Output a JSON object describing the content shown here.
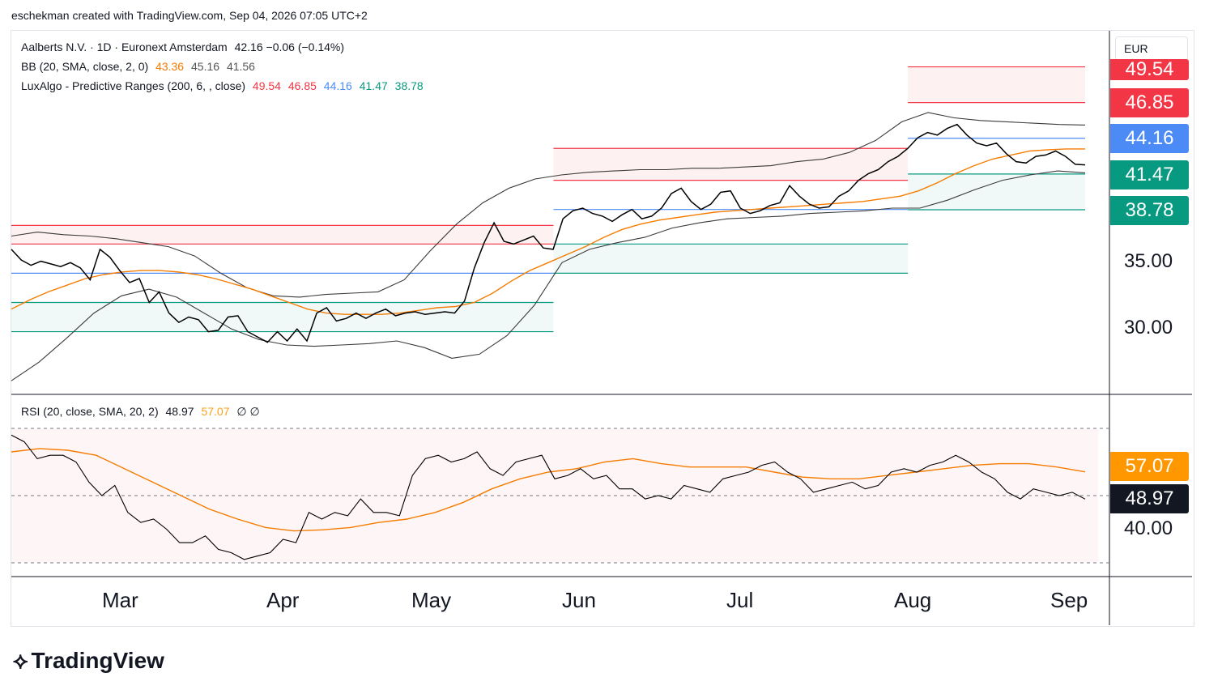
{
  "header": {
    "attribution": "eschekman created with TradingView.com, Sep 04, 2026 07:05 UTC+2"
  },
  "currency": "EUR",
  "legend": {
    "line1": "Aalberts N.V. · 1D · Euronext Amsterdam",
    "line1_values": "42.16  −0.06 (−0.14%)",
    "bb_label": "BB (20, SMA, close, 2, 0)",
    "bb_basis": "43.36",
    "bb_upper": "45.16",
    "bb_lower": "41.56",
    "lux_label": "LuxAlgo - Predictive Ranges (200, 6, , close)",
    "lux_r2": "49.54",
    "lux_r1": "46.85",
    "lux_avg": "44.16",
    "lux_s1": "41.47",
    "lux_s2": "38.78",
    "rsi_label": "RSI (20, close, SMA, 20, 2)",
    "rsi_value": "48.97",
    "rsi_ma": "57.07",
    "rsi_na": "∅  ∅"
  },
  "price_tags": {
    "r2": "49.54",
    "r1": "46.85",
    "avg": "44.16",
    "s1": "41.47",
    "s2": "38.78",
    "rsi_ma": "57.07",
    "rsi": "48.97"
  },
  "price_axis_labels": [
    "35.00",
    "30.00"
  ],
  "rsi_axis_label": "40.00",
  "time_axis": [
    "Mar",
    "Apr",
    "May",
    "Jun",
    "Jul",
    "Aug",
    "Sep"
  ],
  "colors": {
    "resistance": "#f23645",
    "average": "#4c8bf5",
    "support": "#089981",
    "bb_basis": "#f57c00",
    "price": "#000000",
    "bb_band": "#3a3a3a",
    "rsi_tag": "#131722"
  },
  "brand": "TradingView",
  "chart_data": [
    {
      "type": "line",
      "title": "Aalberts N.V. · 1D · Euronext Amsterdam",
      "x_range": [
        "2026-02-10",
        "2026-09-04"
      ],
      "ylim": [
        26,
        52
      ],
      "series": [
        {
          "name": "close",
          "values": [
            35.8,
            35.0,
            34.6,
            34.9,
            34.7,
            34.5,
            34.8,
            34.4,
            33.5,
            35.8,
            35.2,
            34.2,
            33.3,
            33.6,
            31.8,
            32.6,
            31.0,
            30.3,
            30.7,
            30.5,
            29.6,
            29.7,
            30.7,
            30.8,
            29.6,
            29.2,
            28.8,
            29.6,
            28.9,
            29.8,
            28.9,
            31.0,
            31.4,
            30.4,
            30.6,
            31.0,
            30.6,
            31.0,
            31.3,
            30.8,
            31.0,
            31.1,
            30.9,
            31.0,
            31.1,
            31.0,
            31.9,
            34.4,
            36.3,
            37.8,
            36.4,
            36.2,
            36.5,
            36.8,
            35.9,
            35.8,
            38.1,
            38.7,
            38.9,
            38.5,
            38.3,
            37.9,
            38.4,
            38.8,
            38.1,
            38.3,
            38.9,
            40.0,
            40.4,
            39.4,
            38.8,
            39.2,
            40.1,
            40.2,
            38.9,
            38.5,
            38.7,
            39.1,
            39.3,
            40.6,
            39.8,
            39.2,
            38.9,
            39.0,
            39.8,
            40.2,
            41.0,
            41.5,
            41.8,
            42.4,
            42.8,
            43.4,
            44.2,
            44.6,
            44.4,
            44.9,
            45.2,
            44.4,
            43.8,
            43.6,
            43.8,
            43.0,
            42.4,
            42.3,
            42.8,
            42.9,
            43.2,
            42.8,
            42.2,
            42.16
          ]
        },
        {
          "name": "BB basis (SMA 20)",
          "values": [
            31.3,
            32.0,
            32.6,
            33.1,
            33.6,
            33.9,
            34.1,
            34.2,
            34.2,
            34.1,
            33.9,
            33.6,
            33.2,
            32.8,
            32.3,
            31.8,
            31.3,
            31.0,
            30.9,
            30.9,
            30.9,
            31.0,
            31.2,
            31.4,
            31.5,
            31.8,
            32.5,
            33.4,
            34.2,
            34.8,
            35.4,
            36.0,
            36.7,
            37.3,
            37.7,
            38.0,
            38.2,
            38.4,
            38.6,
            38.7,
            38.8,
            38.9,
            39.0,
            39.1,
            39.2,
            39.3,
            39.4,
            39.6,
            39.8,
            40.2,
            40.8,
            41.5,
            42.1,
            42.6,
            42.9,
            43.2,
            43.3,
            43.36,
            43.36
          ]
        },
        {
          "name": "BB upper",
          "values": [
            36.8,
            37.1,
            36.9,
            36.8,
            36.6,
            36.3,
            36.0,
            35.3,
            34.0,
            32.9,
            32.3,
            32.2,
            32.4,
            32.5,
            32.6,
            33.5,
            35.7,
            37.7,
            39.3,
            40.4,
            41.1,
            41.4,
            41.6,
            41.7,
            41.8,
            41.8,
            41.9,
            41.9,
            42.0,
            42.1,
            42.4,
            42.6,
            43.1,
            44.0,
            45.4,
            46.1,
            45.7,
            45.5,
            45.4,
            45.3,
            45.2,
            45.16
          ]
        },
        {
          "name": "BB lower",
          "values": [
            25.9,
            27.3,
            29.1,
            31.0,
            32.3,
            32.8,
            32.2,
            31.0,
            29.8,
            29.0,
            28.6,
            28.5,
            28.6,
            28.7,
            28.9,
            28.4,
            27.6,
            27.9,
            29.3,
            31.6,
            34.8,
            35.8,
            36.3,
            36.7,
            37.4,
            37.8,
            38.1,
            38.2,
            38.3,
            38.5,
            38.6,
            38.7,
            38.9,
            38.9,
            39.5,
            40.3,
            41.0,
            41.4,
            41.7,
            41.56
          ]
        }
      ],
      "ranges": [
        {
          "from": "2026-02-10",
          "to": "2026-05-25",
          "r2": 37.6,
          "r1": 36.2,
          "avg": 34.0,
          "s1": 31.8,
          "s2": 29.6
        },
        {
          "from": "2026-05-25",
          "to": "2026-08-01",
          "r2": 43.4,
          "r1": 41.0,
          "avg": 38.8,
          "s1": 36.2,
          "s2": 34.0
        },
        {
          "from": "2026-08-01",
          "to": "2026-09-04",
          "r2": 49.54,
          "r1": 46.85,
          "avg": 44.16,
          "s1": 41.47,
          "s2": 38.78
        }
      ],
      "y_ticks": [
        35,
        30
      ]
    },
    {
      "type": "line",
      "title": "RSI (20, close, SMA, 20, 2)",
      "ylim": [
        30,
        70
      ],
      "series": [
        {
          "name": "RSI",
          "values": [
            68,
            66,
            61,
            62,
            62,
            60,
            54,
            50,
            53,
            45,
            42,
            43,
            40,
            36,
            36,
            38,
            34,
            33,
            31,
            32,
            33,
            37,
            36,
            45,
            43,
            45,
            44,
            49,
            45,
            45,
            44,
            56,
            61,
            62,
            60,
            61,
            63,
            58,
            56,
            60,
            61,
            62,
            55,
            56,
            58,
            55,
            56,
            52,
            52,
            49,
            50,
            49,
            53,
            52,
            51,
            55,
            56,
            57,
            59,
            60,
            57,
            55,
            51,
            52,
            53,
            54,
            52,
            53,
            57,
            58,
            57,
            59,
            60,
            62,
            60,
            57,
            55,
            51,
            49,
            52,
            51,
            50,
            51,
            48.97
          ]
        },
        {
          "name": "RSI-based MA",
          "values": [
            63,
            64,
            63.5,
            62,
            58,
            54,
            50,
            46,
            43,
            40.5,
            39.5,
            39.8,
            40.5,
            42,
            43,
            45,
            48,
            52,
            55,
            57,
            58,
            60,
            61,
            59.5,
            58.5,
            58.5,
            58.5,
            57,
            55.5,
            55,
            55,
            56,
            57,
            58,
            59,
            59.5,
            59.5,
            58.5,
            57.07
          ]
        }
      ],
      "y_ticks": [
        40
      ],
      "bands": {
        "upper": 70,
        "middle": 50,
        "lower": 30
      }
    }
  ]
}
